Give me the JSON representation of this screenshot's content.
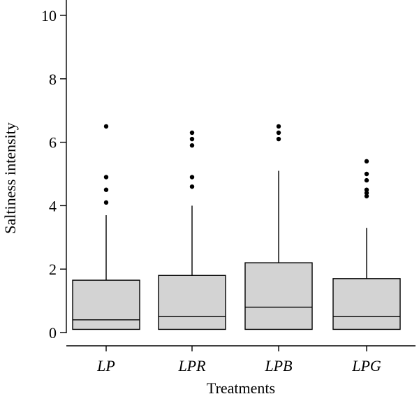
{
  "chart_data": {
    "type": "boxplot",
    "xlabel": "Treatments",
    "ylabel": "Saltiness intensity",
    "ylim": [
      0,
      10
    ],
    "yticks": [
      0,
      2,
      4,
      6,
      8,
      10
    ],
    "categories": [
      "LP",
      "LPR",
      "LPB",
      "LPG"
    ],
    "boxes": [
      {
        "category": "LP",
        "min": 0.1,
        "q1": 0.1,
        "median": 0.4,
        "q3": 1.65,
        "max": 3.7,
        "outliers": [
          4.1,
          4.5,
          4.9,
          6.5
        ]
      },
      {
        "category": "LPR",
        "min": 0.1,
        "q1": 0.1,
        "median": 0.5,
        "q3": 1.8,
        "max": 4.0,
        "outliers": [
          4.6,
          4.9,
          5.9,
          6.1,
          6.3
        ]
      },
      {
        "category": "LPB",
        "min": 0.1,
        "q1": 0.1,
        "median": 0.8,
        "q3": 2.2,
        "max": 5.1,
        "outliers": [
          6.1,
          6.3,
          6.5
        ]
      },
      {
        "category": "LPG",
        "min": 0.1,
        "q1": 0.1,
        "median": 0.5,
        "q3": 1.7,
        "max": 3.3,
        "outliers": [
          4.3,
          4.4,
          4.5,
          4.8,
          5.0,
          5.4
        ]
      }
    ],
    "grid": false,
    "box_color": "#d3d3d3"
  }
}
